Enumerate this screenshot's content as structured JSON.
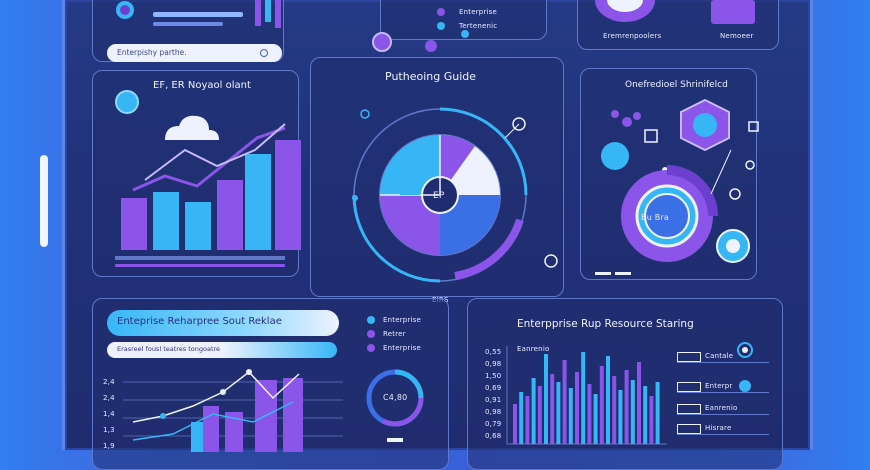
{
  "colors": {
    "background": "#3a5fd8",
    "frame": "#22327a",
    "accent_cyan": "#37b6f6",
    "accent_purple": "#8a55e8",
    "accent_violet": "#6c3fd1",
    "panel_border": "#5f78c9",
    "text": "#eef2ff"
  },
  "top_left": {
    "search_text": "Enterpishy parthe.",
    "analytics_label": "EF, ER Noyaol olant"
  },
  "top_center": {
    "legend_items": [
      "Enterprise",
      "Tertenenic"
    ]
  },
  "top_right": {
    "labels": [
      "Eremrenpoolers",
      "Nemoeer"
    ]
  },
  "center_panel": {
    "title": "Putheoing Guide",
    "center_label": "EP"
  },
  "right_panel": {
    "title": "Onefredioel Shrinifelcd",
    "ring_label": "Bu Bra"
  },
  "divider_label": "EIRS",
  "bottom_left": {
    "banner_text": "Enteprise Reharpree Sout Reklae",
    "sub_text": "Erasreel fousl teatres tongoatre",
    "legend_items": [
      "Enterprise",
      "Retrer",
      "Enterprise"
    ],
    "donut_label": "C4,80",
    "y_ticks": [
      "2,4",
      "2,4",
      "1,4",
      "1,3",
      "1,9"
    ]
  },
  "bottom_right": {
    "title": "Enterpprise Rup Resource Staring",
    "y_ticks": [
      "0,55",
      "0,98",
      "1,50",
      "0,69",
      "0,91",
      "0,98",
      "0,79",
      "0,68"
    ],
    "legend_items": [
      "Cantale",
      "Enterpr",
      "Eanrenio",
      "Hisrare"
    ],
    "note": "Eanrenio"
  }
}
